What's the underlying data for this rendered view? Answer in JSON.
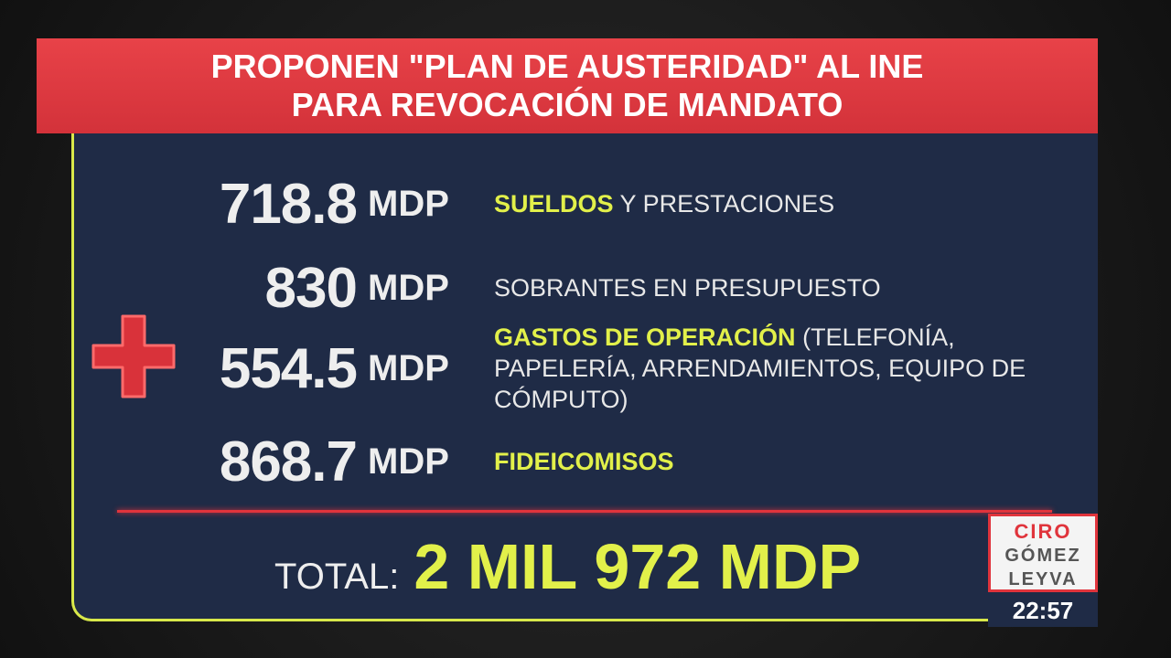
{
  "header": {
    "title_lines": [
      "PROPONEN \"PLAN DE AUSTERIDAD\" AL INE",
      "PARA REVOCACIÓN DE MANDATO"
    ]
  },
  "items": [
    {
      "amount": 718.8,
      "unit": "MDP",
      "highlight": "SUELDOS",
      "text": "Y PRESTACIONES"
    },
    {
      "amount": 830,
      "unit": "MDP",
      "highlight": null,
      "text": "SOBRANTES EN PRESUPUESTO"
    },
    {
      "amount": 554.5,
      "unit": "MDP",
      "highlight": "GASTOS DE OPERACIÓN",
      "text": "(TELEFONÍA, PAPELERÍA, ARRENDAMIENTOS, EQUIPO DE CÓMPUTO)"
    },
    {
      "amount": 868.7,
      "unit": "MDP",
      "highlight": "FIDEICOMISOS",
      "text": null
    }
  ],
  "total": {
    "label": "TOTAL:",
    "amount": "2 MIL 972 MDP"
  },
  "logo": {
    "lines": [
      "CIRO",
      "GÓMEZ",
      "LEYVA"
    ],
    "time": "22:57"
  }
}
